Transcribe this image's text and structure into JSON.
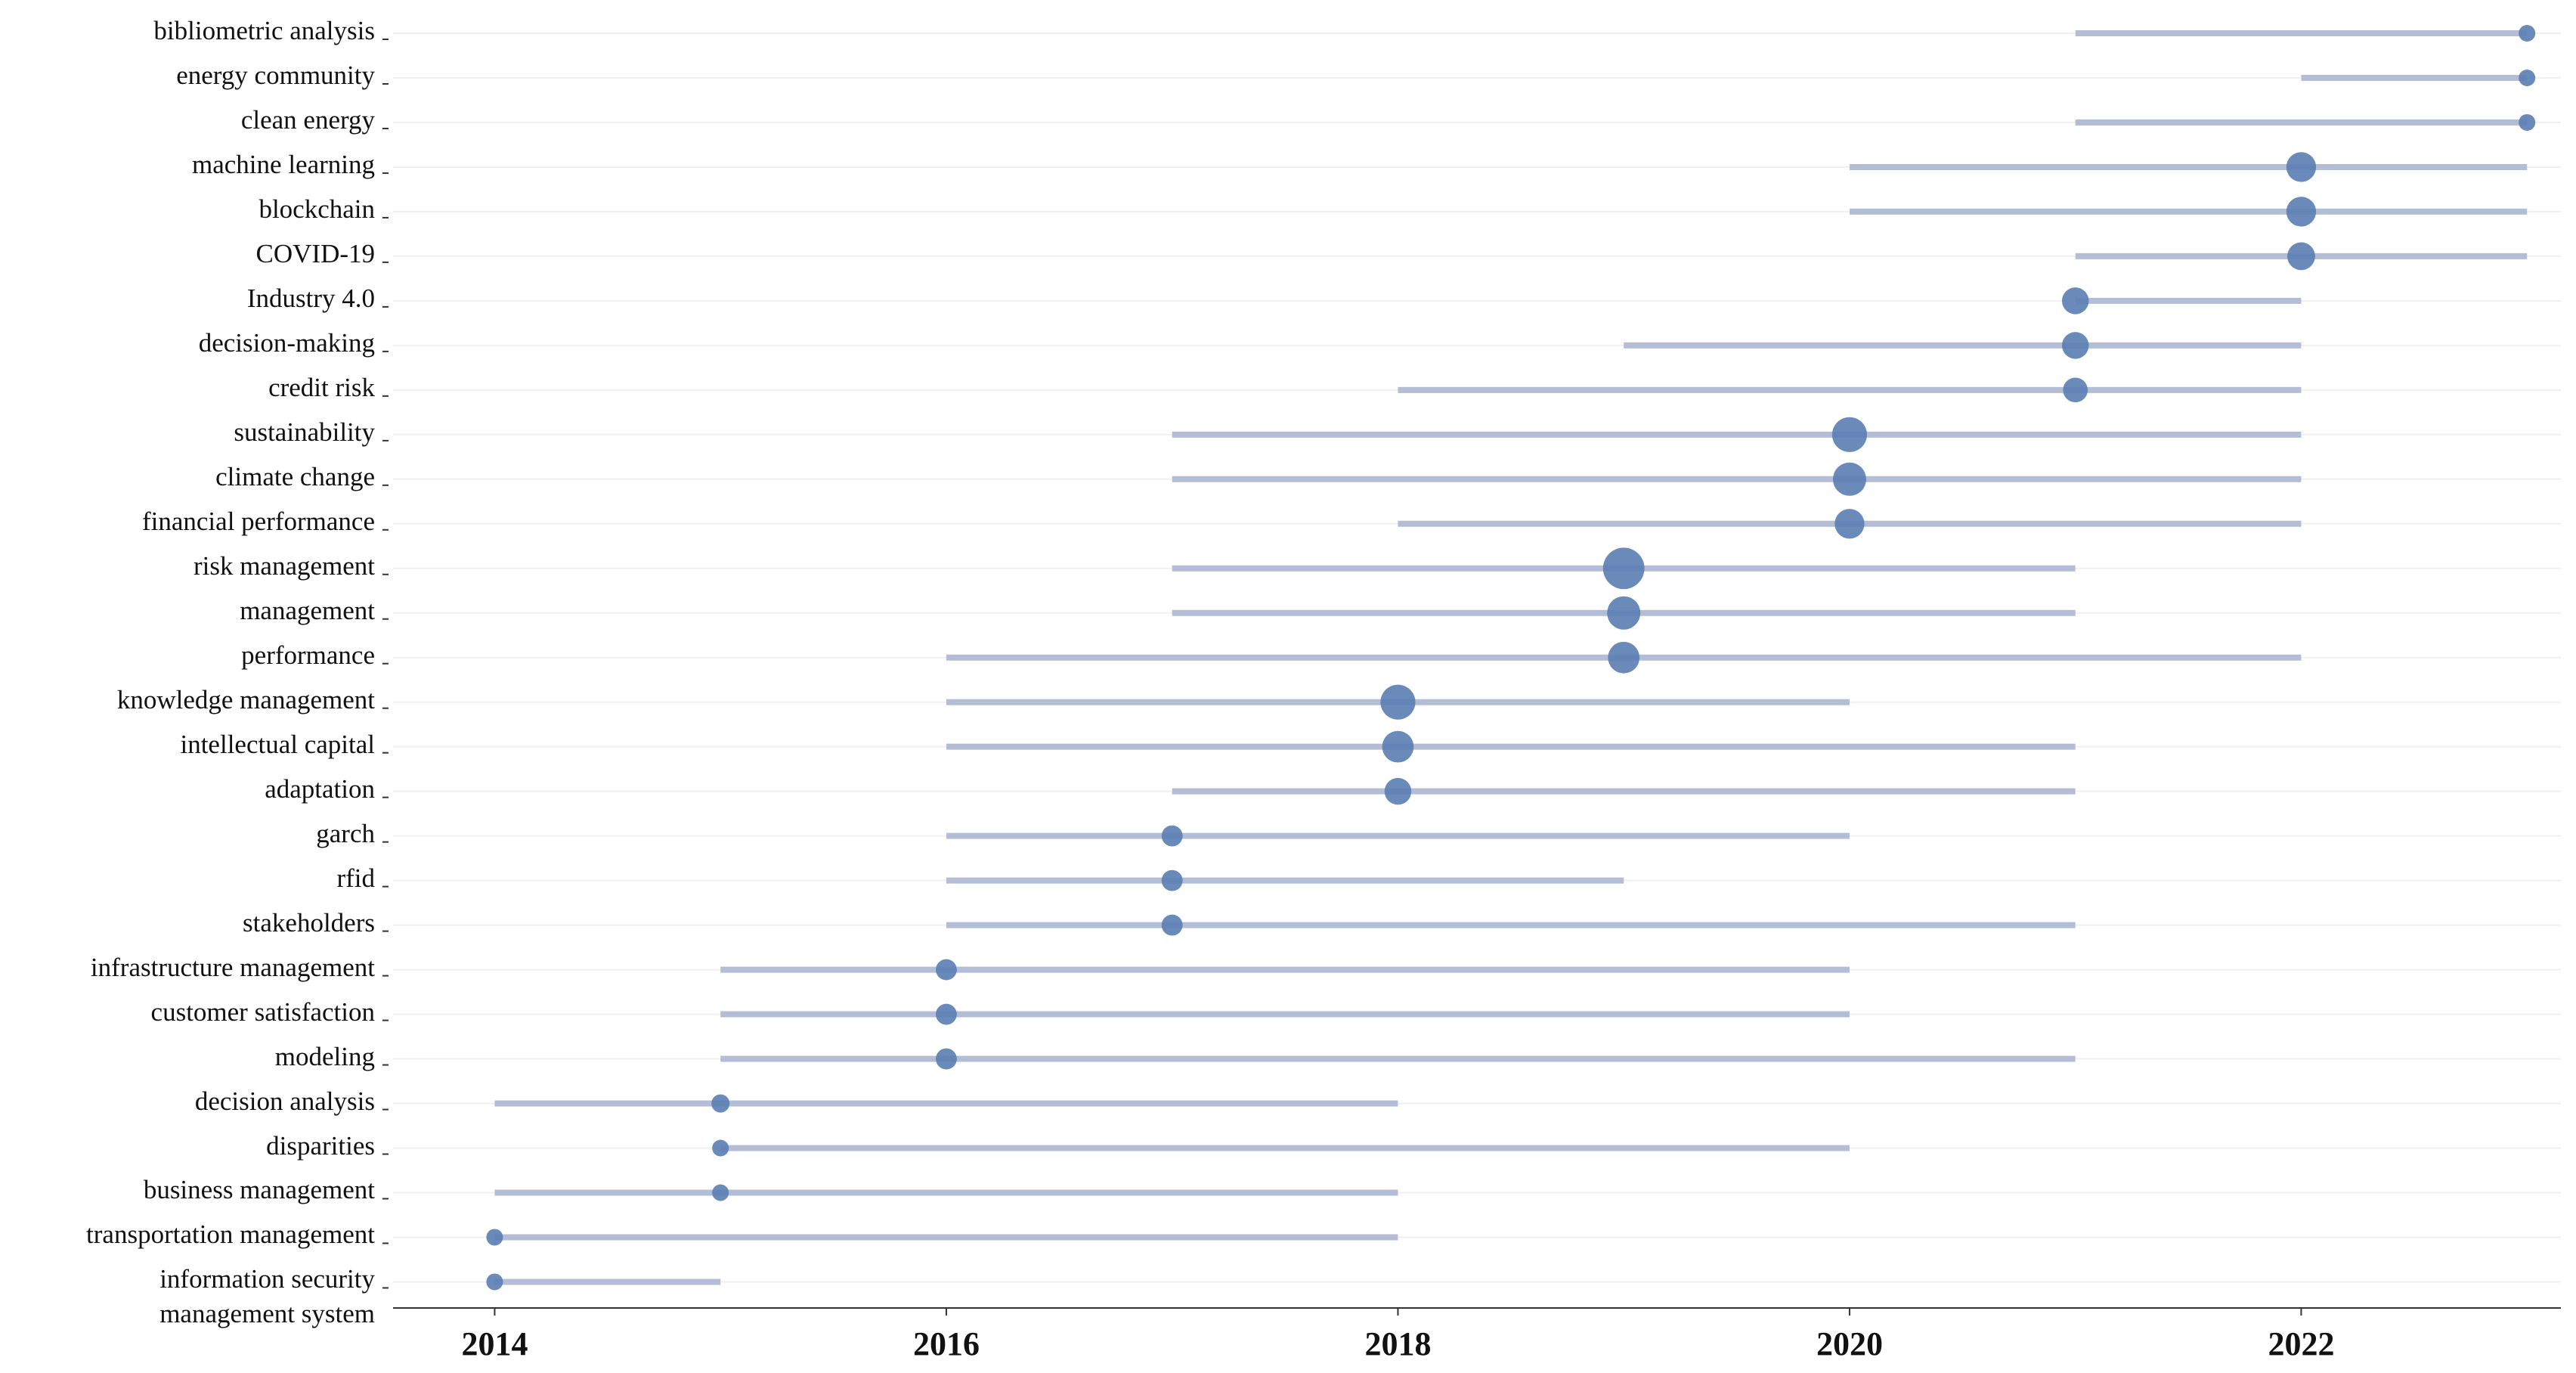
{
  "chart_data": {
    "type": "trend",
    "categories": [
      "bibliometric analysis",
      "energy community",
      "clean energy",
      "machine learning",
      "blockchain",
      "COVID-19",
      "Industry 4.0",
      "decision-making",
      "credit risk",
      "sustainability",
      "climate change",
      "financial performance",
      "risk management",
      "management",
      "performance",
      "knowledge management",
      "intellectual capital",
      "adaptation",
      "garch",
      "rfid",
      "stakeholders",
      "infrastructure management",
      "customer satisfaction",
      "modeling",
      "decision analysis",
      "disparities",
      "business management",
      "transportation management",
      "information security\nmanagement system"
    ],
    "q1": [
      2021,
      2022,
      2021,
      2020,
      2020,
      2021,
      2021,
      2019,
      2018,
      2017,
      2017,
      2018,
      2017,
      2017,
      2016,
      2016,
      2016,
      2017,
      2016,
      2016,
      2016,
      2015,
      2015,
      2015,
      2014,
      2015,
      2014,
      2014,
      2014
    ],
    "median": [
      2023,
      2023,
      2023,
      2022,
      2022,
      2022,
      2021,
      2021,
      2021,
      2020,
      2020,
      2020,
      2019,
      2019,
      2019,
      2018,
      2018,
      2018,
      2017,
      2017,
      2017,
      2016,
      2016,
      2016,
      2015,
      2015,
      2015,
      2014,
      2014
    ],
    "q3": [
      2023,
      2023,
      2023,
      2023,
      2023,
      2023,
      2022,
      2022,
      2022,
      2022,
      2022,
      2022,
      2021,
      2021,
      2022,
      2020,
      2021,
      2021,
      2020,
      2019,
      2021,
      2020,
      2020,
      2021,
      2018,
      2020,
      2018,
      2018,
      2015
    ],
    "sizes": [
      5,
      5,
      5,
      16,
      16,
      14,
      13,
      13,
      11,
      22,
      20,
      16,
      31,
      20,
      18,
      22,
      18,
      13,
      8,
      8,
      8,
      8,
      8,
      8,
      6,
      5,
      5,
      5,
      5
    ],
    "color": "#5a7db3",
    "line_color": "#b3bdd6",
    "xlim": [
      2013.55,
      2023.15
    ],
    "xticks": [
      2014,
      2016,
      2018,
      2020,
      2022
    ],
    "grid": true
  }
}
